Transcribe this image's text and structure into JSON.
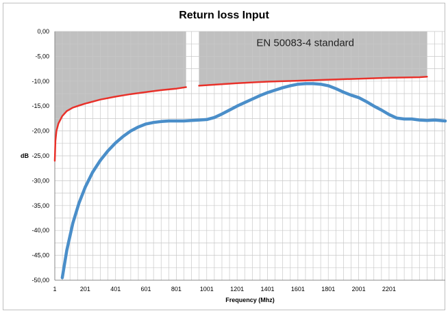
{
  "chart_data": {
    "type": "line",
    "title": "Return loss Input",
    "xlabel": "Frequency (Mhz)",
    "ylabel": "dB",
    "xlim": [
      1,
      2571
    ],
    "ylim": [
      -50,
      0
    ],
    "x_ticks": [
      "1",
      "201",
      "401",
      "601",
      "801",
      "1001",
      "1201",
      "1401",
      "1601",
      "1801",
      "2001",
      "2201"
    ],
    "x_tick_values": [
      1,
      201,
      401,
      601,
      801,
      1001,
      1201,
      1401,
      1601,
      1801,
      2001,
      2201
    ],
    "y_ticks": [
      "0,00",
      "-5,00",
      "-10,00",
      "-15,00",
      "-20,00",
      "-25,00",
      "-30,00",
      "-35,00",
      "-40,00",
      "-45,00",
      "-50,00"
    ],
    "y_tick_values": [
      0,
      -5,
      -10,
      -15,
      -20,
      -25,
      -30,
      -35,
      -40,
      -45,
      -50
    ],
    "grid": true,
    "annotation": "EN 50083-4 standard",
    "colors": {
      "measured": "#4A8EC9",
      "limit": "#E8312A",
      "limit_fill": "#C0C0C0",
      "grid": "#C8C8C8"
    },
    "series": [
      {
        "values": [
          [
            50,
            -49.5
          ],
          [
            80,
            -44
          ],
          [
            120,
            -38.5
          ],
          [
            160,
            -34.5
          ],
          [
            201,
            -31.3
          ],
          [
            250,
            -28.3
          ],
          [
            301,
            -25.9
          ],
          [
            351,
            -24.0
          ],
          [
            401,
            -22.4
          ],
          [
            451,
            -21.1
          ],
          [
            501,
            -20.0
          ],
          [
            551,
            -19.2
          ],
          [
            601,
            -18.6
          ],
          [
            651,
            -18.3
          ],
          [
            701,
            -18.1
          ],
          [
            751,
            -18.0
          ],
          [
            801,
            -18.0
          ],
          [
            851,
            -18.0
          ],
          [
            901,
            -17.9
          ],
          [
            951,
            -17.8
          ],
          [
            1001,
            -17.7
          ],
          [
            1051,
            -17.3
          ],
          [
            1101,
            -16.6
          ],
          [
            1151,
            -15.8
          ],
          [
            1201,
            -15.0
          ],
          [
            1251,
            -14.3
          ],
          [
            1301,
            -13.6
          ],
          [
            1351,
            -12.9
          ],
          [
            1401,
            -12.3
          ],
          [
            1451,
            -11.8
          ],
          [
            1501,
            -11.3
          ],
          [
            1551,
            -10.9
          ],
          [
            1601,
            -10.6
          ],
          [
            1651,
            -10.5
          ],
          [
            1701,
            -10.5
          ],
          [
            1751,
            -10.6
          ],
          [
            1801,
            -10.9
          ],
          [
            1851,
            -11.5
          ],
          [
            1901,
            -12.2
          ],
          [
            1951,
            -12.8
          ],
          [
            2001,
            -13.3
          ],
          [
            2051,
            -14.1
          ],
          [
            2101,
            -15.0
          ],
          [
            2151,
            -15.8
          ],
          [
            2201,
            -16.7
          ],
          [
            2251,
            -17.4
          ],
          [
            2301,
            -17.6
          ],
          [
            2351,
            -17.6
          ],
          [
            2401,
            -17.8
          ],
          [
            2451,
            -17.9
          ],
          [
            2501,
            -17.8
          ],
          [
            2571,
            -18.0
          ]
        ]
      },
      {
        "segments": [
          [
            [
              1,
              -26
            ],
            [
              5,
              -22
            ],
            [
              12,
              -20
            ],
            [
              25,
              -18.5
            ],
            [
              50,
              -17.0
            ],
            [
              80,
              -16.0
            ],
            [
              120,
              -15.3
            ],
            [
              160,
              -14.9
            ],
            [
              201,
              -14.5
            ],
            [
              301,
              -13.7
            ],
            [
              401,
              -13.1
            ],
            [
              501,
              -12.6
            ],
            [
              601,
              -12.2
            ],
            [
              701,
              -11.8
            ],
            [
              801,
              -11.5
            ],
            [
              865,
              -11.2
            ]
          ],
          [
            [
              950,
              -10.9
            ],
            [
              1001,
              -10.8
            ],
            [
              1201,
              -10.4
            ],
            [
              1401,
              -10.1
            ],
            [
              1601,
              -9.9
            ],
            [
              1801,
              -9.7
            ],
            [
              2001,
              -9.5
            ],
            [
              2201,
              -9.3
            ],
            [
              2401,
              -9.2
            ],
            [
              2451,
              -9.1
            ]
          ]
        ]
      }
    ]
  }
}
